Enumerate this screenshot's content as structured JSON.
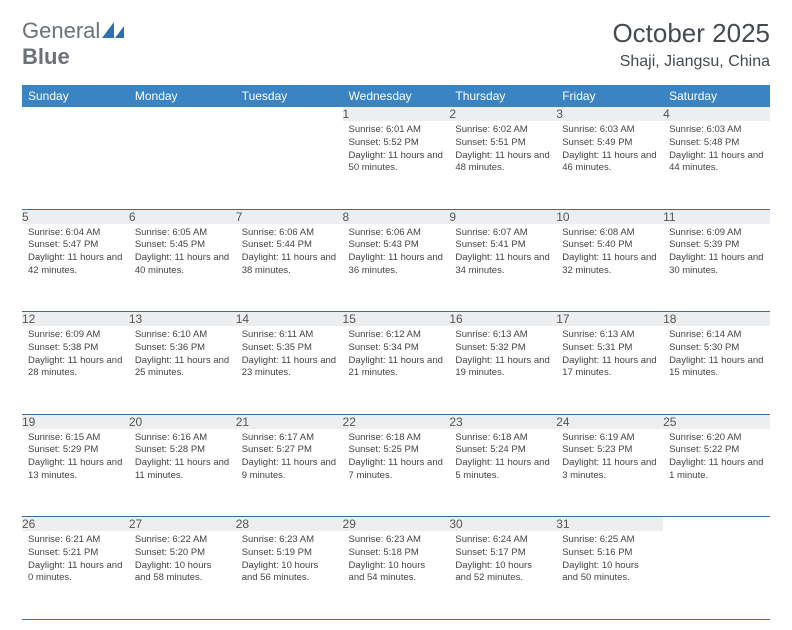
{
  "logo": {
    "text1": "General",
    "text2": "Blue"
  },
  "title": "October 2025",
  "location": "Shaji, Jiangsu, China",
  "colors": {
    "headerBg": "#3b84c4",
    "headerText": "#ffffff",
    "dayNumBg": "#edeeef",
    "rowBorder": "#3b6c9a",
    "logoShape": "#2d6fb0"
  },
  "dayHeaders": [
    "Sunday",
    "Monday",
    "Tuesday",
    "Wednesday",
    "Thursday",
    "Friday",
    "Saturday"
  ],
  "weeks": [
    [
      null,
      null,
      null,
      {
        "n": "1",
        "sr": "6:01 AM",
        "ss": "5:52 PM",
        "dl": "11 hours and 50 minutes."
      },
      {
        "n": "2",
        "sr": "6:02 AM",
        "ss": "5:51 PM",
        "dl": "11 hours and 48 minutes."
      },
      {
        "n": "3",
        "sr": "6:03 AM",
        "ss": "5:49 PM",
        "dl": "11 hours and 46 minutes."
      },
      {
        "n": "4",
        "sr": "6:03 AM",
        "ss": "5:48 PM",
        "dl": "11 hours and 44 minutes."
      }
    ],
    [
      {
        "n": "5",
        "sr": "6:04 AM",
        "ss": "5:47 PM",
        "dl": "11 hours and 42 minutes."
      },
      {
        "n": "6",
        "sr": "6:05 AM",
        "ss": "5:45 PM",
        "dl": "11 hours and 40 minutes."
      },
      {
        "n": "7",
        "sr": "6:06 AM",
        "ss": "5:44 PM",
        "dl": "11 hours and 38 minutes."
      },
      {
        "n": "8",
        "sr": "6:06 AM",
        "ss": "5:43 PM",
        "dl": "11 hours and 36 minutes."
      },
      {
        "n": "9",
        "sr": "6:07 AM",
        "ss": "5:41 PM",
        "dl": "11 hours and 34 minutes."
      },
      {
        "n": "10",
        "sr": "6:08 AM",
        "ss": "5:40 PM",
        "dl": "11 hours and 32 minutes."
      },
      {
        "n": "11",
        "sr": "6:09 AM",
        "ss": "5:39 PM",
        "dl": "11 hours and 30 minutes."
      }
    ],
    [
      {
        "n": "12",
        "sr": "6:09 AM",
        "ss": "5:38 PM",
        "dl": "11 hours and 28 minutes."
      },
      {
        "n": "13",
        "sr": "6:10 AM",
        "ss": "5:36 PM",
        "dl": "11 hours and 25 minutes."
      },
      {
        "n": "14",
        "sr": "6:11 AM",
        "ss": "5:35 PM",
        "dl": "11 hours and 23 minutes."
      },
      {
        "n": "15",
        "sr": "6:12 AM",
        "ss": "5:34 PM",
        "dl": "11 hours and 21 minutes."
      },
      {
        "n": "16",
        "sr": "6:13 AM",
        "ss": "5:32 PM",
        "dl": "11 hours and 19 minutes."
      },
      {
        "n": "17",
        "sr": "6:13 AM",
        "ss": "5:31 PM",
        "dl": "11 hours and 17 minutes."
      },
      {
        "n": "18",
        "sr": "6:14 AM",
        "ss": "5:30 PM",
        "dl": "11 hours and 15 minutes."
      }
    ],
    [
      {
        "n": "19",
        "sr": "6:15 AM",
        "ss": "5:29 PM",
        "dl": "11 hours and 13 minutes."
      },
      {
        "n": "20",
        "sr": "6:16 AM",
        "ss": "5:28 PM",
        "dl": "11 hours and 11 minutes."
      },
      {
        "n": "21",
        "sr": "6:17 AM",
        "ss": "5:27 PM",
        "dl": "11 hours and 9 minutes."
      },
      {
        "n": "22",
        "sr": "6:18 AM",
        "ss": "5:25 PM",
        "dl": "11 hours and 7 minutes."
      },
      {
        "n": "23",
        "sr": "6:18 AM",
        "ss": "5:24 PM",
        "dl": "11 hours and 5 minutes."
      },
      {
        "n": "24",
        "sr": "6:19 AM",
        "ss": "5:23 PM",
        "dl": "11 hours and 3 minutes."
      },
      {
        "n": "25",
        "sr": "6:20 AM",
        "ss": "5:22 PM",
        "dl": "11 hours and 1 minute."
      }
    ],
    [
      {
        "n": "26",
        "sr": "6:21 AM",
        "ss": "5:21 PM",
        "dl": "11 hours and 0 minutes."
      },
      {
        "n": "27",
        "sr": "6:22 AM",
        "ss": "5:20 PM",
        "dl": "10 hours and 58 minutes."
      },
      {
        "n": "28",
        "sr": "6:23 AM",
        "ss": "5:19 PM",
        "dl": "10 hours and 56 minutes."
      },
      {
        "n": "29",
        "sr": "6:23 AM",
        "ss": "5:18 PM",
        "dl": "10 hours and 54 minutes."
      },
      {
        "n": "30",
        "sr": "6:24 AM",
        "ss": "5:17 PM",
        "dl": "10 hours and 52 minutes."
      },
      {
        "n": "31",
        "sr": "6:25 AM",
        "ss": "5:16 PM",
        "dl": "10 hours and 50 minutes."
      },
      null
    ]
  ],
  "labels": {
    "sunrise": "Sunrise: ",
    "sunset": "Sunset: ",
    "daylight": "Daylight: "
  }
}
